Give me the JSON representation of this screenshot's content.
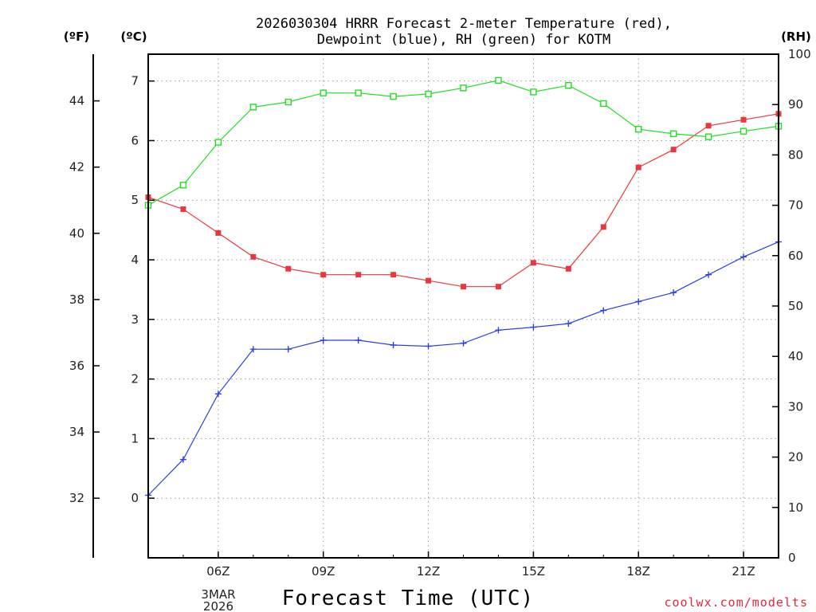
{
  "chart_data": {
    "type": "line",
    "title_line1": "2026030304 HRRR Forecast 2-meter Temperature (red),",
    "title_line2": "Dewpoint (blue), RH (green) for KOTM",
    "xlabel": "Forecast Time (UTC)",
    "credit": "coolwx.com/modelts",
    "units": {
      "fahrenheit": "(ºF)",
      "celsius": "(ºC)",
      "rh": "(RH)"
    },
    "x_range": [
      4,
      22
    ],
    "x_ticks": [
      {
        "x": 6,
        "label": "06Z"
      },
      {
        "x": 9,
        "label": "09Z"
      },
      {
        "x": 12,
        "label": "12Z"
      },
      {
        "x": 15,
        "label": "15Z"
      },
      {
        "x": 18,
        "label": "18Z"
      },
      {
        "x": 21,
        "label": "21Z"
      }
    ],
    "date_label_line1": "3MAR",
    "date_label_line2": "2026",
    "ylim_celsius": [
      -1,
      7.45
    ],
    "y_ticks_celsius": [
      0,
      1,
      2,
      3,
      4,
      5,
      6,
      7
    ],
    "y_ticks_fahrenheit": [
      32,
      34,
      36,
      38,
      40,
      42,
      44
    ],
    "ylim_rh": [
      0,
      100
    ],
    "y_ticks_rh": [
      0,
      10,
      20,
      30,
      40,
      50,
      60,
      70,
      80,
      90,
      100
    ],
    "grid": true,
    "x": [
      4,
      5,
      6,
      7,
      8,
      9,
      10,
      11,
      12,
      13,
      14,
      15,
      16,
      17,
      18,
      19,
      20,
      21,
      22
    ],
    "series": [
      {
        "name": "Temperature",
        "axis": "celsius",
        "color": "#e8383d",
        "marker": "filled-square",
        "values": [
          5.05,
          4.85,
          4.45,
          4.05,
          3.85,
          3.75,
          3.75,
          3.75,
          3.65,
          3.55,
          3.55,
          3.95,
          3.85,
          4.55,
          5.55,
          5.85,
          6.25,
          6.35,
          6.45
        ]
      },
      {
        "name": "Dewpoint",
        "axis": "celsius",
        "color": "#2e3fe0",
        "marker": "plus",
        "values": [
          0.05,
          0.65,
          1.75,
          2.5,
          2.5,
          2.65,
          2.65,
          2.57,
          2.55,
          2.6,
          2.82,
          2.87,
          2.93,
          3.15,
          3.3,
          3.45,
          3.75,
          4.05,
          4.3
        ]
      },
      {
        "name": "RH",
        "axis": "rh",
        "color": "#22dd22",
        "marker": "open-square",
        "values": [
          70,
          74,
          82.5,
          89.5,
          90.5,
          92.3,
          92.3,
          91.6,
          92.1,
          93.3,
          94.8,
          92.5,
          93.8,
          90.2,
          85.1,
          84.2,
          83.6,
          84.7,
          85.7
        ]
      }
    ]
  }
}
